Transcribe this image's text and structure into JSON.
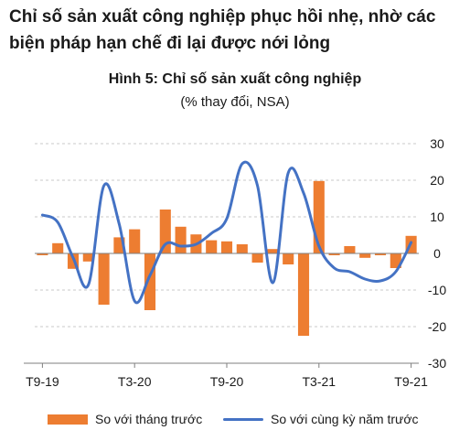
{
  "headline": {
    "line1": "Chỉ số sản xuất công nghiệp phục hồi nhẹ, nhờ các",
    "line2": "biện pháp hạn chế đi lại được nới lỏng"
  },
  "colors": {
    "bar": "#ED7D31",
    "line": "#4472C4",
    "grid": "#c8c8c8",
    "axis": "#7f7f7f"
  },
  "chart_data": {
    "type": "bar",
    "title": "Hình 5: Chỉ số sản xuất công nghiệp",
    "subtitle": "(% thay đổi, NSA)",
    "xlabel": "",
    "ylabel": "",
    "ylim": [
      -30,
      30
    ],
    "yticks": [
      30,
      20,
      10,
      0,
      -10,
      -20,
      -30
    ],
    "y_axis_side": "right",
    "grid": "horizontal-dotted",
    "categories": [
      "T9-19",
      "T10-19",
      "T11-19",
      "T12-19",
      "T1-20",
      "T2-20",
      "T3-20",
      "T4-20",
      "T5-20",
      "T6-20",
      "T7-20",
      "T8-20",
      "T9-20",
      "T10-20",
      "T11-20",
      "T12-20",
      "T1-21",
      "T2-21",
      "T3-21",
      "T4-21",
      "T5-21",
      "T6-21",
      "T7-21",
      "T8-21",
      "T9-21"
    ],
    "x_tick_labels": [
      {
        "index": 0,
        "label": "T9-19"
      },
      {
        "index": 6,
        "label": "T3-20"
      },
      {
        "index": 12,
        "label": "T9-20"
      },
      {
        "index": 18,
        "label": "T3-21"
      },
      {
        "index": 24,
        "label": "T9-21"
      }
    ],
    "series": [
      {
        "name": "So với tháng trước",
        "type": "bar",
        "values": [
          -0.5,
          2.8,
          -4.2,
          -2.2,
          -14.0,
          4.4,
          6.6,
          -15.5,
          12.0,
          7.3,
          5.2,
          3.6,
          3.3,
          2.5,
          -2.5,
          1.2,
          -3.0,
          -22.5,
          19.8,
          -0.5,
          2.0,
          -1.2,
          -0.5,
          -4.0,
          4.8
        ]
      },
      {
        "name": "So với cùng kỳ năm trước",
        "type": "line",
        "values": [
          10.5,
          8.5,
          -1.2,
          -8.5,
          18.5,
          8.0,
          -13.0,
          -6.0,
          2.5,
          2.0,
          2.5,
          5.5,
          9.5,
          24.5,
          18.5,
          -8.0,
          22.0,
          16.5,
          2.0,
          -4.0,
          -5.0,
          -7.0,
          -7.5,
          -5.0,
          3.0
        ]
      }
    ],
    "legend_position": "bottom"
  }
}
